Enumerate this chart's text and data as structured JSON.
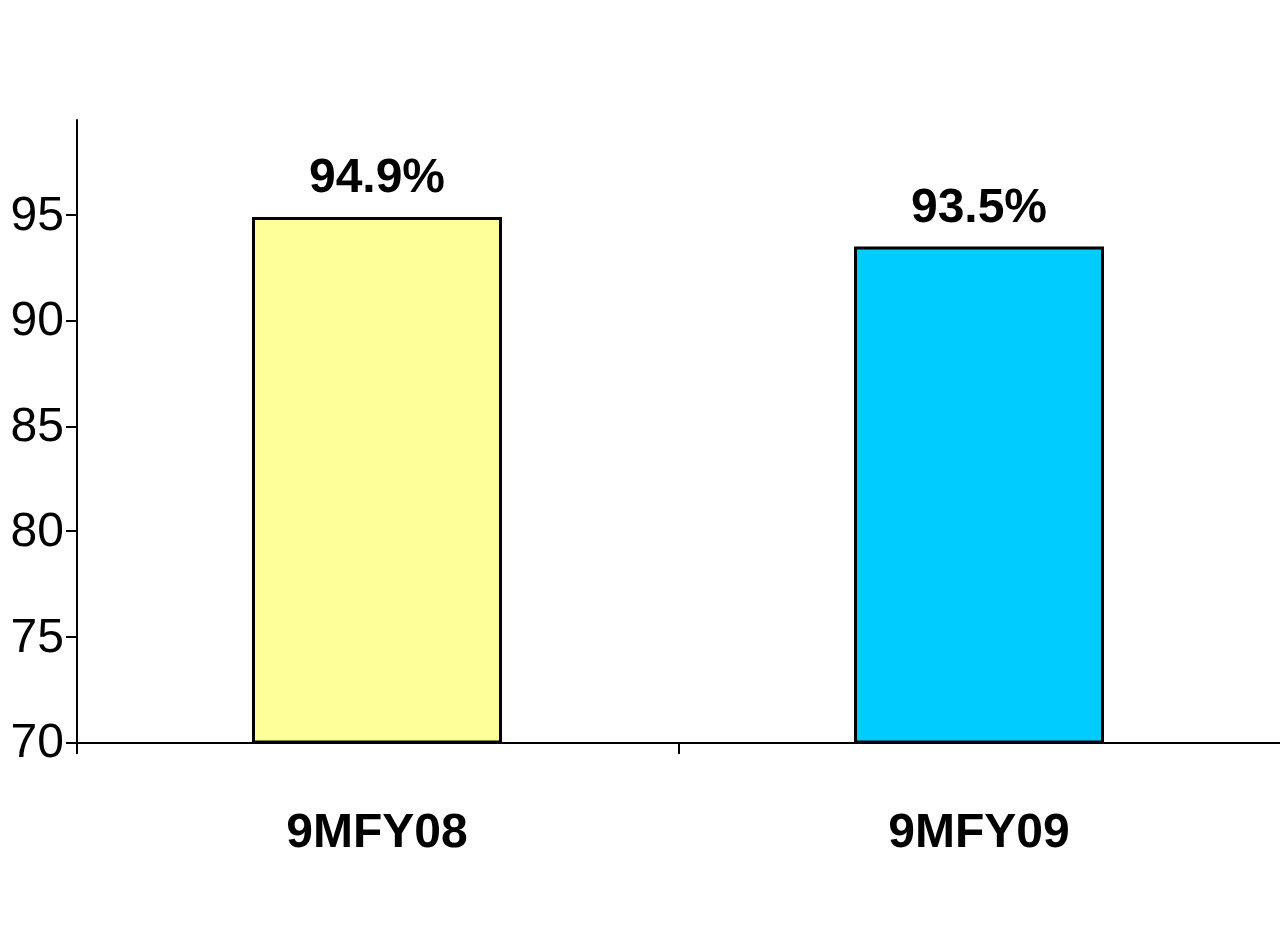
{
  "chart_data": {
    "type": "bar",
    "categories": [
      "9MFY08",
      "9MFY09"
    ],
    "values": [
      94.9,
      93.5
    ],
    "colors": [
      "#ffff99",
      "#00ccff"
    ],
    "value_labels": [
      "94.9%",
      "93.5%"
    ],
    "ylim": [
      70,
      99.5
    ],
    "yticks": [
      70,
      75,
      80,
      85,
      90,
      95
    ]
  }
}
